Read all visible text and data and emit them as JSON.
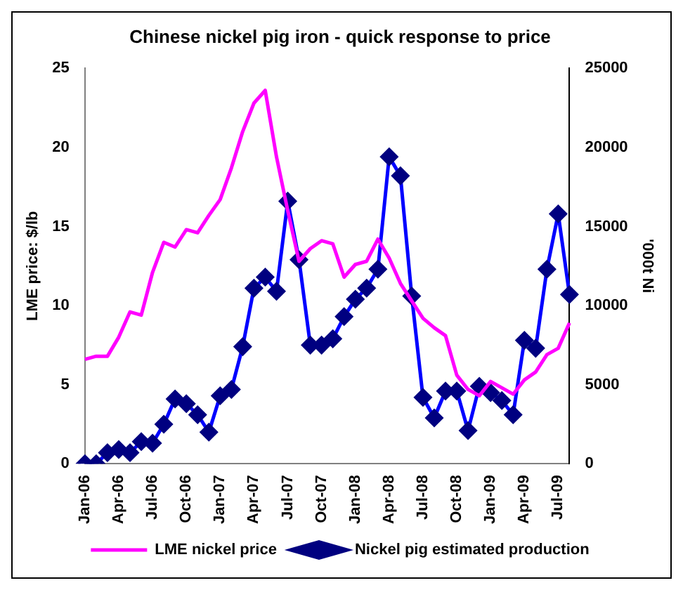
{
  "chart_data": {
    "type": "line",
    "title": "Chinese nickel pig iron - quick response to price",
    "ylabel": "LME price: $/lb",
    "y2label": "'000t Ni",
    "categories": [
      "Jan-06",
      null,
      null,
      "Apr-06",
      null,
      null,
      "Jul-06",
      null,
      null,
      "Oct-06",
      null,
      null,
      "Jan-07",
      null,
      null,
      "Apr-07",
      null,
      null,
      "Jul-07",
      null,
      null,
      "Oct-07",
      null,
      null,
      "Jan-08",
      null,
      null,
      "Apr-08",
      null,
      null,
      "Jul-08",
      null,
      null,
      "Oct-08",
      null,
      null,
      "Jan-09",
      null,
      null,
      "Apr-09",
      null,
      null,
      "Jul-09",
      null
    ],
    "series": [
      {
        "name": "LME nickel price",
        "color": "#ff00ff",
        "marker": "none",
        "values": [
          6.6,
          6.8,
          6.8,
          8.0,
          9.6,
          9.4,
          12.1,
          14.0,
          13.7,
          14.8,
          14.6,
          15.7,
          16.7,
          18.7,
          21.0,
          22.8,
          23.6,
          19.4,
          16.0,
          12.8,
          13.6,
          14.1,
          13.9,
          11.8,
          12.6,
          12.8,
          14.2,
          13.0,
          11.4,
          10.3,
          9.2,
          8.6,
          8.1,
          5.6,
          4.7,
          4.3,
          5.2,
          4.8,
          4.4,
          5.3,
          5.8,
          6.9,
          7.3,
          8.9
        ]
      },
      {
        "name": "Nickel pig estimated production",
        "color": "#0000ff",
        "marker": "diamond",
        "axis": "y2",
        "values": [
          0,
          0,
          700,
          900,
          700,
          1400,
          1300,
          2500,
          4100,
          3800,
          3100,
          2000,
          4300,
          4700,
          7400,
          11100,
          11800,
          10900,
          16600,
          12900,
          7500,
          7500,
          7900,
          9300,
          10400,
          11100,
          12300,
          19400,
          18200,
          10600,
          4200,
          2900,
          4600,
          4600,
          2100,
          4900,
          4500,
          4000,
          3100,
          7800,
          7300,
          12300,
          15800,
          10700
        ]
      }
    ],
    "ylim": [
      0,
      25
    ],
    "yticks": [
      0,
      5,
      10,
      15,
      20,
      25
    ],
    "y2lim": [
      0,
      25000
    ],
    "y2ticks": [
      0,
      5000,
      10000,
      15000,
      20000,
      25000
    ],
    "grid": false,
    "legend": "bottom"
  }
}
